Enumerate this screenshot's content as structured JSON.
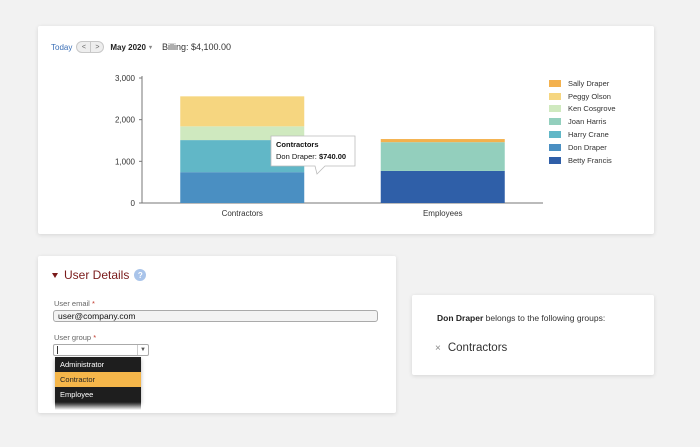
{
  "billing_toolbar": {
    "today_label": "Today",
    "prev_label": "<",
    "next_label": ">",
    "month_label": "May 2020",
    "billing_label": "Billing: $4,100.00"
  },
  "chart_data": {
    "type": "bar",
    "stacked": true,
    "title": "",
    "xlabel": "",
    "ylabel": "",
    "ylim": [
      0,
      3000
    ],
    "yticks": [
      0,
      1000,
      2000,
      3000
    ],
    "ytick_labels": [
      "0",
      "1,000",
      "2,000",
      "3,000"
    ],
    "categories": [
      "Contractors",
      "Employees"
    ],
    "series": [
      {
        "name": "Betty Francis",
        "color": "#2f5fa8",
        "values": [
          0,
          770
        ]
      },
      {
        "name": "Don Draper",
        "color": "#4a8fc2",
        "values": [
          740,
          0
        ]
      },
      {
        "name": "Harry Crane",
        "color": "#61b7c7",
        "values": [
          770,
          0
        ]
      },
      {
        "name": "Joan Harris",
        "color": "#93cfbd",
        "values": [
          0,
          690
        ]
      },
      {
        "name": "Ken Cosgrove",
        "color": "#cfe9bf",
        "values": [
          330,
          0
        ]
      },
      {
        "name": "Peggy Olson",
        "color": "#f6d680",
        "values": [
          720,
          0
        ]
      },
      {
        "name": "Sally Draper",
        "color": "#f3b14e",
        "values": [
          0,
          75
        ]
      }
    ],
    "legend": {
      "position": "right",
      "entries": [
        "Sally Draper",
        "Peggy Olson",
        "Ken Cosgrove",
        "Joan Harris",
        "Harry Crane",
        "Don Draper",
        "Betty Francis"
      ]
    },
    "grid": false,
    "tooltip": {
      "title": "Contractors",
      "series_label": "Don Draper: ",
      "value_label": "$740.00"
    }
  },
  "user_details": {
    "title": "User Details",
    "help_icon": "?",
    "email_label": "User email",
    "email_value": "user@company.com",
    "group_label": "User group",
    "required_mark": "*",
    "group_options": [
      "Administrator",
      "Contractor",
      "Employee"
    ],
    "selected_option": "Contractor"
  },
  "groups_panel": {
    "user_name": "Don Draper",
    "description": " belongs to the following groups:",
    "remove_icon": "×",
    "groups": [
      "Contractors"
    ]
  },
  "icons": {
    "collapse": "caret-down-icon",
    "help": "question-circle-icon",
    "remove": "close-icon",
    "select": "chevron-down-icon"
  }
}
